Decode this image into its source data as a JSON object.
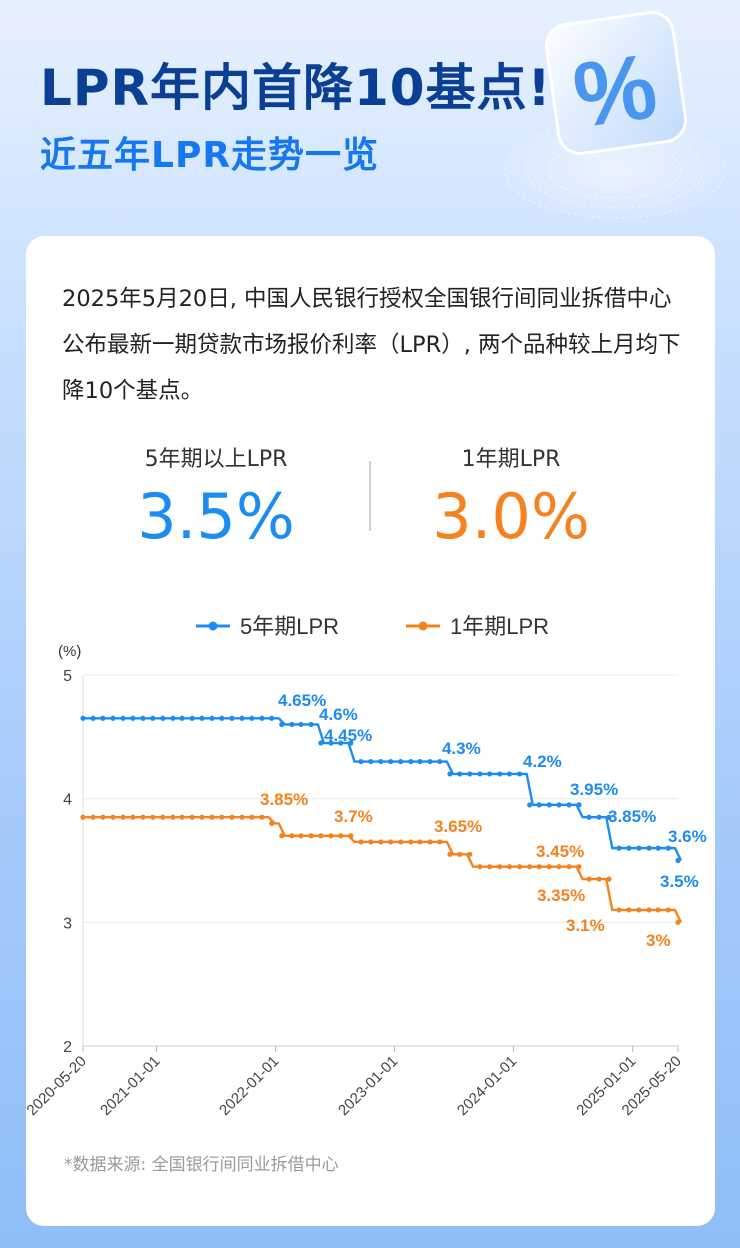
{
  "header": {
    "title": "LPR年内首降10基点!",
    "subtitle": "近五年LPR走势一览",
    "badge_icon": "percent-icon"
  },
  "intro": "2025年5月20日, 中国人民银行授权全国银行间同业拆借中心公布最新一期贷款市场报价利率（LPR）, 两个品种较上月均下降10个基点。",
  "stats": [
    {
      "label": "5年期以上LPR",
      "value": "3.5%"
    },
    {
      "label": "1年期LPR",
      "value": "3.0%"
    }
  ],
  "colors": {
    "five_year": "#1d8cf0",
    "one_year": "#f5821f"
  },
  "source": "*数据来源: 全国银行间同业拆借中心",
  "chart_data": {
    "type": "line",
    "y_unit_label": "(%)",
    "ylim": [
      2,
      5
    ],
    "yticks": [
      5,
      4,
      3,
      2
    ],
    "xlim": [
      "2020-05-20",
      "2025-05-20"
    ],
    "xticks": [
      "2020-05-20",
      "2021-01-01",
      "2022-01-01",
      "2023-01-01",
      "2024-01-01",
      "2025-01-01",
      "2025-05-20"
    ],
    "grid": "horizontal",
    "legend": "top-center",
    "series": [
      {
        "name": "5年期LPR",
        "color": "#1d8cf0",
        "steps": [
          {
            "from": "2020-05-20",
            "value": 4.65
          },
          {
            "from": "2022-01-20",
            "value": 4.6
          },
          {
            "from": "2022-05-20",
            "value": 4.45
          },
          {
            "from": "2022-08-22",
            "value": 4.3
          },
          {
            "from": "2023-06-20",
            "value": 4.2
          },
          {
            "from": "2024-02-20",
            "value": 3.95
          },
          {
            "from": "2024-07-22",
            "value": 3.85
          },
          {
            "from": "2024-10-21",
            "value": 3.6
          },
          {
            "from": "2025-05-20",
            "value": 3.5
          }
        ],
        "labels": [
          "4.65%",
          "4.6%",
          "4.45%",
          "4.3%",
          "4.2%",
          "3.95%",
          "3.85%",
          "3.6%",
          "3.5%"
        ]
      },
      {
        "name": "1年期LPR",
        "color": "#f5821f",
        "steps": [
          {
            "from": "2020-05-20",
            "value": 3.85
          },
          {
            "from": "2021-12-20",
            "value": 3.8
          },
          {
            "from": "2022-01-20",
            "value": 3.7
          },
          {
            "from": "2022-08-22",
            "value": 3.65
          },
          {
            "from": "2023-06-20",
            "value": 3.55
          },
          {
            "from": "2023-08-21",
            "value": 3.45
          },
          {
            "from": "2024-07-22",
            "value": 3.35
          },
          {
            "from": "2024-10-21",
            "value": 3.1
          },
          {
            "from": "2025-05-20",
            "value": 3.0
          }
        ],
        "labels": [
          "3.85%",
          "3.7%",
          "3.65%",
          "3.45%",
          "3.35%",
          "3.1%",
          "3%"
        ]
      }
    ]
  }
}
